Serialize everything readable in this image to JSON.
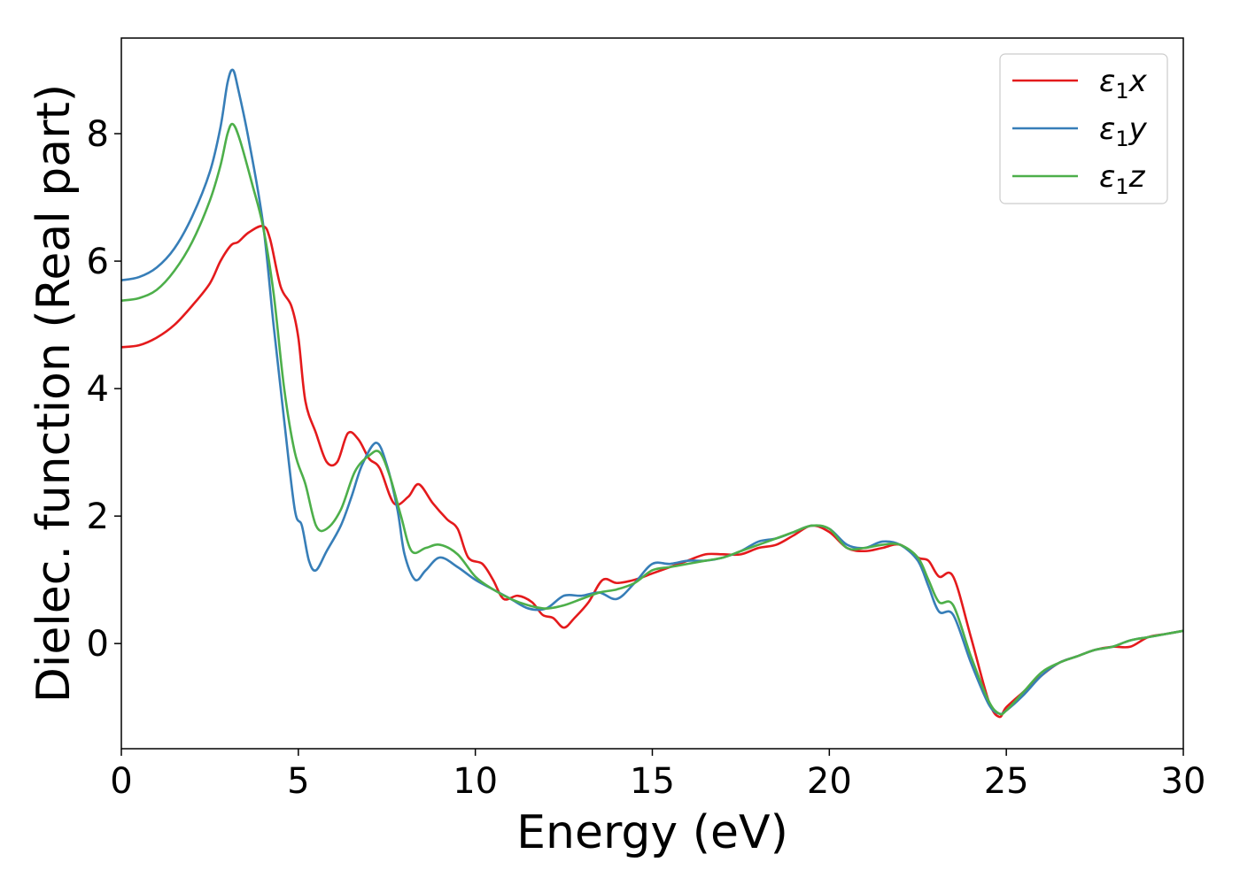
{
  "chart_data": {
    "type": "line",
    "title": "",
    "xlabel": "Energy (eV)",
    "ylabel": "Dielec. function (Real part)",
    "xlim": [
      0,
      30
    ],
    "ylim": [
      -1.65,
      9.5
    ],
    "xticks": [
      0,
      5,
      10,
      15,
      20,
      25,
      30
    ],
    "yticks": [
      0,
      2,
      4,
      6,
      8
    ],
    "grid": false,
    "legend_position": "top-right",
    "series": [
      {
        "name": "ε1x",
        "legend_symbol": "ε",
        "legend_sub": "1",
        "legend_var": "x",
        "color": "#e41a1c",
        "points": [
          [
            0,
            4.65
          ],
          [
            0.5,
            4.68
          ],
          [
            1,
            4.8
          ],
          [
            1.5,
            5.0
          ],
          [
            2,
            5.3
          ],
          [
            2.5,
            5.65
          ],
          [
            2.8,
            6.0
          ],
          [
            3.1,
            6.25
          ],
          [
            3.3,
            6.3
          ],
          [
            3.6,
            6.45
          ],
          [
            4.0,
            6.55
          ],
          [
            4.2,
            6.35
          ],
          [
            4.5,
            5.6
          ],
          [
            4.8,
            5.3
          ],
          [
            5.0,
            4.8
          ],
          [
            5.2,
            3.8
          ],
          [
            5.5,
            3.3
          ],
          [
            5.8,
            2.85
          ],
          [
            6.1,
            2.85
          ],
          [
            6.4,
            3.3
          ],
          [
            6.7,
            3.2
          ],
          [
            7.0,
            2.9
          ],
          [
            7.3,
            2.75
          ],
          [
            7.7,
            2.2
          ],
          [
            8.1,
            2.3
          ],
          [
            8.4,
            2.5
          ],
          [
            8.8,
            2.2
          ],
          [
            9.2,
            1.95
          ],
          [
            9.5,
            1.8
          ],
          [
            9.8,
            1.35
          ],
          [
            10.2,
            1.25
          ],
          [
            10.5,
            1.0
          ],
          [
            10.8,
            0.7
          ],
          [
            11.2,
            0.75
          ],
          [
            11.6,
            0.65
          ],
          [
            11.9,
            0.45
          ],
          [
            12.2,
            0.4
          ],
          [
            12.5,
            0.25
          ],
          [
            12.8,
            0.4
          ],
          [
            13.2,
            0.65
          ],
          [
            13.6,
            1.0
          ],
          [
            14.0,
            0.95
          ],
          [
            14.5,
            1.0
          ],
          [
            15.0,
            1.1
          ],
          [
            15.5,
            1.2
          ],
          [
            16.0,
            1.3
          ],
          [
            16.5,
            1.4
          ],
          [
            17.0,
            1.4
          ],
          [
            17.5,
            1.4
          ],
          [
            18.0,
            1.5
          ],
          [
            18.5,
            1.55
          ],
          [
            19.0,
            1.7
          ],
          [
            19.5,
            1.85
          ],
          [
            20.0,
            1.75
          ],
          [
            20.5,
            1.5
          ],
          [
            21.0,
            1.45
          ],
          [
            21.5,
            1.5
          ],
          [
            22.0,
            1.55
          ],
          [
            22.5,
            1.35
          ],
          [
            22.8,
            1.3
          ],
          [
            23.1,
            1.05
          ],
          [
            23.5,
            1.05
          ],
          [
            24.0,
            0.1
          ],
          [
            24.5,
            -0.9
          ],
          [
            24.8,
            -1.15
          ],
          [
            25.0,
            -1.0
          ],
          [
            25.5,
            -0.75
          ],
          [
            26.0,
            -0.5
          ],
          [
            26.5,
            -0.3
          ],
          [
            27.0,
            -0.2
          ],
          [
            27.5,
            -0.1
          ],
          [
            28.0,
            -0.05
          ],
          [
            28.5,
            -0.05
          ],
          [
            29.0,
            0.1
          ],
          [
            29.5,
            0.15
          ],
          [
            30.0,
            0.2
          ]
        ]
      },
      {
        "name": "ε1y",
        "legend_symbol": "ε",
        "legend_sub": "1",
        "legend_var": "y",
        "color": "#377eb8",
        "points": [
          [
            0,
            5.7
          ],
          [
            0.5,
            5.75
          ],
          [
            1,
            5.9
          ],
          [
            1.5,
            6.2
          ],
          [
            2,
            6.7
          ],
          [
            2.5,
            7.4
          ],
          [
            2.8,
            8.1
          ],
          [
            3.0,
            8.8
          ],
          [
            3.15,
            9.0
          ],
          [
            3.3,
            8.7
          ],
          [
            3.6,
            7.9
          ],
          [
            4.0,
            6.6
          ],
          [
            4.3,
            5.0
          ],
          [
            4.6,
            3.5
          ],
          [
            4.9,
            2.1
          ],
          [
            5.1,
            1.85
          ],
          [
            5.3,
            1.3
          ],
          [
            5.5,
            1.15
          ],
          [
            5.8,
            1.45
          ],
          [
            6.2,
            1.85
          ],
          [
            6.5,
            2.3
          ],
          [
            6.8,
            2.8
          ],
          [
            7.2,
            3.15
          ],
          [
            7.5,
            2.8
          ],
          [
            7.8,
            2.1
          ],
          [
            8.0,
            1.4
          ],
          [
            8.3,
            1.0
          ],
          [
            8.6,
            1.15
          ],
          [
            9.0,
            1.35
          ],
          [
            9.5,
            1.2
          ],
          [
            10.0,
            1.0
          ],
          [
            10.5,
            0.85
          ],
          [
            11.0,
            0.7
          ],
          [
            11.5,
            0.55
          ],
          [
            12.0,
            0.55
          ],
          [
            12.5,
            0.75
          ],
          [
            13.0,
            0.75
          ],
          [
            13.5,
            0.8
          ],
          [
            14.0,
            0.7
          ],
          [
            14.5,
            0.95
          ],
          [
            15.0,
            1.25
          ],
          [
            15.5,
            1.25
          ],
          [
            16.0,
            1.3
          ],
          [
            16.5,
            1.3
          ],
          [
            17.0,
            1.35
          ],
          [
            17.5,
            1.45
          ],
          [
            18.0,
            1.6
          ],
          [
            18.5,
            1.65
          ],
          [
            19.0,
            1.75
          ],
          [
            19.5,
            1.85
          ],
          [
            20.0,
            1.8
          ],
          [
            20.5,
            1.55
          ],
          [
            21.0,
            1.5
          ],
          [
            21.5,
            1.6
          ],
          [
            22.0,
            1.55
          ],
          [
            22.5,
            1.3
          ],
          [
            22.8,
            0.9
          ],
          [
            23.1,
            0.5
          ],
          [
            23.5,
            0.45
          ],
          [
            24.0,
            -0.3
          ],
          [
            24.5,
            -0.95
          ],
          [
            24.8,
            -1.1
          ],
          [
            25.0,
            -1.05
          ],
          [
            25.5,
            -0.8
          ],
          [
            26.0,
            -0.5
          ],
          [
            26.5,
            -0.3
          ],
          [
            27.0,
            -0.2
          ],
          [
            27.5,
            -0.1
          ],
          [
            28.0,
            -0.05
          ],
          [
            28.5,
            0.05
          ],
          [
            29.0,
            0.1
          ],
          [
            29.5,
            0.15
          ],
          [
            30.0,
            0.2
          ]
        ]
      },
      {
        "name": "ε1z",
        "legend_symbol": "ε",
        "legend_sub": "1",
        "legend_var": "z",
        "color": "#4daf4a",
        "points": [
          [
            0,
            5.38
          ],
          [
            0.5,
            5.42
          ],
          [
            1,
            5.55
          ],
          [
            1.5,
            5.85
          ],
          [
            2,
            6.3
          ],
          [
            2.5,
            6.95
          ],
          [
            2.8,
            7.5
          ],
          [
            3.0,
            8.0
          ],
          [
            3.15,
            8.15
          ],
          [
            3.35,
            7.9
          ],
          [
            3.7,
            7.2
          ],
          [
            4.0,
            6.55
          ],
          [
            4.3,
            5.5
          ],
          [
            4.6,
            4.0
          ],
          [
            4.9,
            3.0
          ],
          [
            5.2,
            2.5
          ],
          [
            5.5,
            1.85
          ],
          [
            5.8,
            1.8
          ],
          [
            6.2,
            2.1
          ],
          [
            6.6,
            2.7
          ],
          [
            7.0,
            2.95
          ],
          [
            7.3,
            3.0
          ],
          [
            7.6,
            2.6
          ],
          [
            7.9,
            2.0
          ],
          [
            8.2,
            1.45
          ],
          [
            8.6,
            1.5
          ],
          [
            9.0,
            1.55
          ],
          [
            9.5,
            1.4
          ],
          [
            10.0,
            1.05
          ],
          [
            10.5,
            0.85
          ],
          [
            11.0,
            0.7
          ],
          [
            11.5,
            0.6
          ],
          [
            12.0,
            0.55
          ],
          [
            12.5,
            0.6
          ],
          [
            13.0,
            0.7
          ],
          [
            13.5,
            0.8
          ],
          [
            14.0,
            0.85
          ],
          [
            14.5,
            0.95
          ],
          [
            15.0,
            1.15
          ],
          [
            15.5,
            1.2
          ],
          [
            16.0,
            1.25
          ],
          [
            16.5,
            1.3
          ],
          [
            17.0,
            1.35
          ],
          [
            17.5,
            1.45
          ],
          [
            18.0,
            1.55
          ],
          [
            18.5,
            1.65
          ],
          [
            19.0,
            1.75
          ],
          [
            19.5,
            1.85
          ],
          [
            20.0,
            1.8
          ],
          [
            20.5,
            1.5
          ],
          [
            21.0,
            1.5
          ],
          [
            21.5,
            1.55
          ],
          [
            22.0,
            1.55
          ],
          [
            22.5,
            1.35
          ],
          [
            22.8,
            1.0
          ],
          [
            23.1,
            0.65
          ],
          [
            23.5,
            0.6
          ],
          [
            24.0,
            -0.2
          ],
          [
            24.5,
            -0.9
          ],
          [
            24.8,
            -1.1
          ],
          [
            25.0,
            -1.05
          ],
          [
            25.5,
            -0.75
          ],
          [
            26.0,
            -0.45
          ],
          [
            26.5,
            -0.3
          ],
          [
            27.0,
            -0.2
          ],
          [
            27.5,
            -0.1
          ],
          [
            28.0,
            -0.05
          ],
          [
            28.5,
            0.05
          ],
          [
            29.0,
            0.1
          ],
          [
            29.5,
            0.15
          ],
          [
            30.0,
            0.2
          ]
        ]
      }
    ]
  }
}
